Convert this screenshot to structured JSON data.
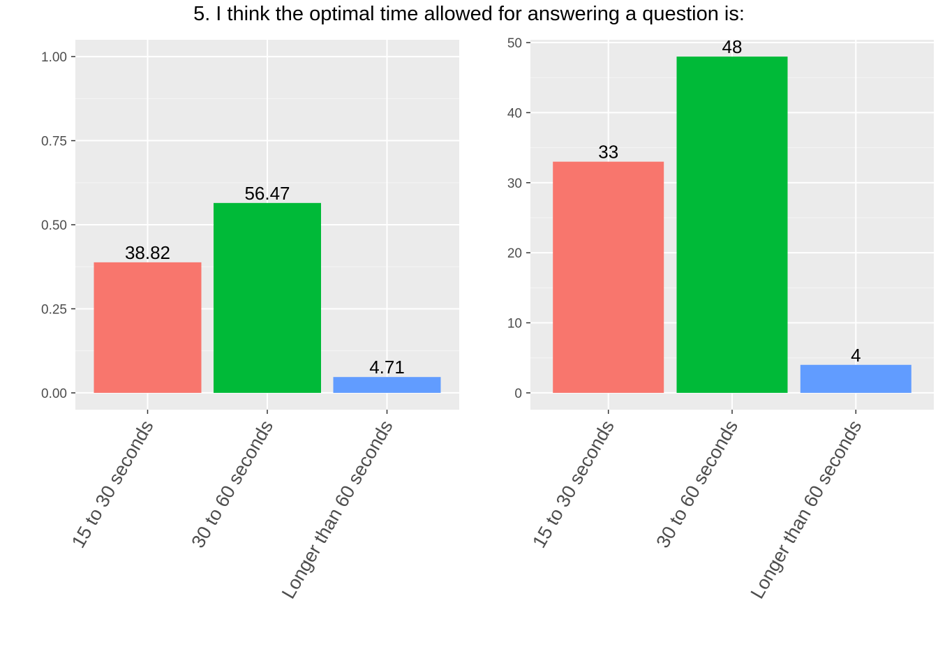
{
  "title": "5. I think the optimal time allowed for answering a question is:",
  "colors": {
    "panel_bg": "#EBEBEB",
    "grid_major": "#FFFFFF",
    "grid_minor": "#F5F5F5",
    "tick_text": "#4D4D4D",
    "label_text": "#000000"
  },
  "chart_data": [
    {
      "type": "bar",
      "categories": [
        "15 to 30 seconds",
        "30 to 60 seconds",
        "Longer than 60 seconds"
      ],
      "values": [
        0.3882,
        0.5647,
        0.0471
      ],
      "bar_labels": [
        "38.82",
        "56.47",
        "4.71"
      ],
      "colors": [
        "#F8766D",
        "#00BA38",
        "#619CFF"
      ],
      "ylim": [
        -0.05,
        1.05
      ],
      "yticks": [
        0,
        0.25,
        0.5,
        0.75,
        1.0
      ],
      "ytick_labels": [
        "0.00",
        "0.25",
        "0.50",
        "0.75",
        "1.00"
      ],
      "minor_ticks": [
        0.125,
        0.375,
        0.625,
        0.875
      ],
      "xlabel": "",
      "ylabel": "",
      "grid": true
    },
    {
      "type": "bar",
      "categories": [
        "15 to 30 seconds",
        "30 to 60 seconds",
        "Longer than 60 seconds"
      ],
      "values": [
        33,
        48,
        4
      ],
      "bar_labels": [
        "33",
        "48",
        "4"
      ],
      "colors": [
        "#F8766D",
        "#00BA38",
        "#619CFF"
      ],
      "ylim": [
        -2.4,
        50.4
      ],
      "yticks": [
        0,
        10,
        20,
        30,
        40,
        50
      ],
      "ytick_labels": [
        "0",
        "10",
        "20",
        "30",
        "40",
        "50"
      ],
      "minor_ticks": [
        5,
        15,
        25,
        35,
        45
      ],
      "xlabel": "",
      "ylabel": "",
      "grid": true
    }
  ]
}
